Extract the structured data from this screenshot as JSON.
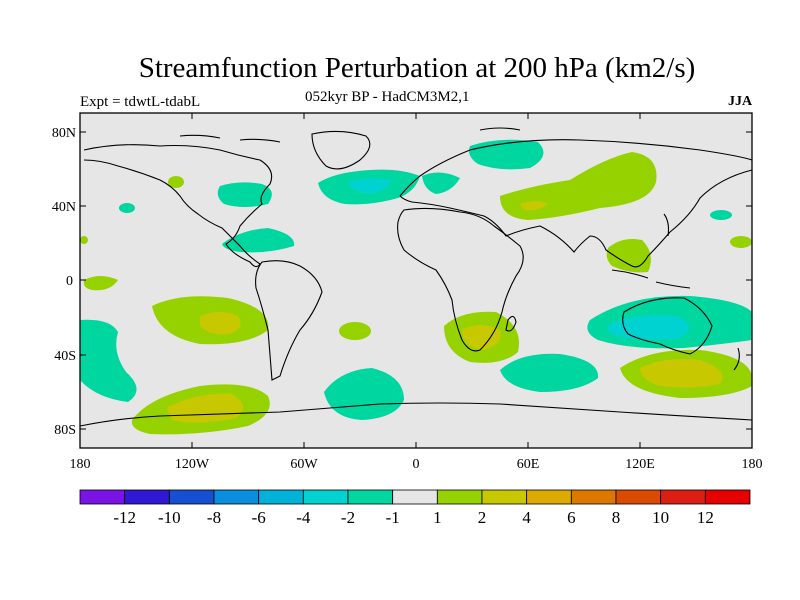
{
  "header": {
    "title": "Streamfunction Perturbation at 200 hPa (km2/s)",
    "subtitle": "052kyr BP - HadCM3M2,1",
    "experiment": "Expt = tdwtL-tdabL",
    "season": "JJA"
  },
  "axes": {
    "lat_labels": [
      "80N",
      "40N",
      "0",
      "40S",
      "80S"
    ],
    "lon_labels": [
      "180",
      "120W",
      "60W",
      "0",
      "60E",
      "120E",
      "180"
    ]
  },
  "colorbar": {
    "labels": [
      "-12",
      "-10",
      "-8",
      "-6",
      "-4",
      "-2",
      "-1",
      "1",
      "2",
      "4",
      "6",
      "8",
      "10",
      "12"
    ],
    "colors": [
      "#7a14e6",
      "#3018d6",
      "#1650d2",
      "#0a8ede",
      "#00b2d8",
      "#00d2d2",
      "#00d6a0",
      "#e6e6e6",
      "#96d200",
      "#c8c800",
      "#dcaa00",
      "#dc7800",
      "#dc4a00",
      "#dc1e14",
      "#e60000"
    ]
  },
  "colors": {
    "ocean_background": "#e6e6e6",
    "coastline": "#000000"
  }
}
